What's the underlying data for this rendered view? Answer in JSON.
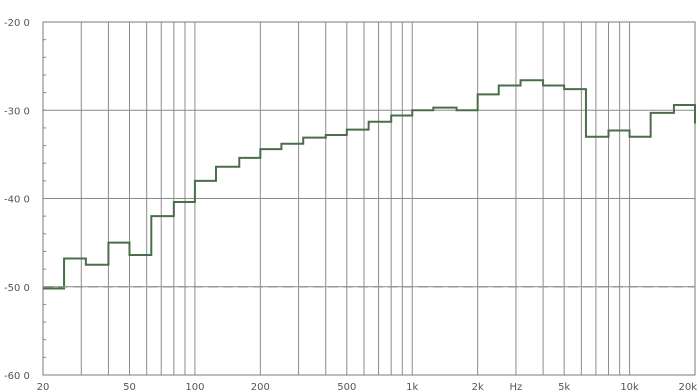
{
  "chart_data": {
    "type": "line",
    "step": "post",
    "x_scale": "log",
    "xlim": [
      20,
      20000
    ],
    "ylim": [
      -60,
      -20
    ],
    "y_ticks": [
      -20,
      -30,
      -40,
      -50,
      -60
    ],
    "y_tick_labels": [
      "-20 0",
      "-30 0",
      "-40 0",
      "-50 0",
      "-60 0"
    ],
    "x_tick_labels": [
      {
        "value": 20,
        "label": "20"
      },
      {
        "value": 50,
        "label": "50"
      },
      {
        "value": 100,
        "label": "100"
      },
      {
        "value": 200,
        "label": "200"
      },
      {
        "value": 500,
        "label": "500"
      },
      {
        "value": 1000,
        "label": "1k"
      },
      {
        "value": 2000,
        "label": "2k"
      },
      {
        "value": 3000,
        "label": "Hz"
      },
      {
        "value": 5000,
        "label": "5k"
      },
      {
        "value": 10000,
        "label": "10k"
      },
      {
        "value": 20000,
        "label": "20k"
      }
    ],
    "x_gridlines": [
      20,
      30,
      40,
      50,
      60,
      70,
      80,
      90,
      100,
      200,
      300,
      400,
      500,
      600,
      700,
      800,
      900,
      1000,
      2000,
      3000,
      4000,
      5000,
      6000,
      7000,
      8000,
      9000,
      10000,
      20000
    ],
    "y_gridlines": [
      -20,
      -30,
      -40,
      -50,
      -60
    ],
    "grid": true,
    "series": [
      {
        "color": "#4a6e4a",
        "x": [
          20,
          25,
          31.5,
          40,
          50,
          63,
          80,
          100,
          125,
          160,
          200,
          250,
          315,
          400,
          500,
          630,
          800,
          1000,
          1250,
          1600,
          2000,
          2500,
          3150,
          4000,
          5000,
          6300,
          8000,
          10000,
          12500,
          16000,
          20000
        ],
        "y": [
          -50.2,
          -46.8,
          -47.5,
          -45.0,
          -46.4,
          -42.0,
          -40.4,
          -38.0,
          -36.4,
          -35.4,
          -34.4,
          -33.8,
          -33.1,
          -32.8,
          -32.2,
          -31.3,
          -30.6,
          -30.0,
          -29.7,
          -30.0,
          -28.2,
          -27.2,
          -26.6,
          -27.2,
          -27.6,
          -33.0,
          -32.3,
          -33.0,
          -30.3,
          -29.4,
          -31.5
        ]
      },
      {
        "color": "#8aa08a",
        "dashed": true,
        "x": [
          20,
          20000
        ],
        "y": [
          -50.0,
          -50.0
        ]
      }
    ]
  }
}
